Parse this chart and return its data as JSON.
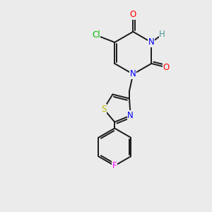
{
  "background_color": "#ebebeb",
  "bond_color": "#1a1a1a",
  "atoms": {
    "Cl": {
      "color": "#00bb00",
      "fontsize": 8.5
    },
    "O": {
      "color": "#ff0000",
      "fontsize": 8.5
    },
    "N": {
      "color": "#0000ff",
      "fontsize": 8.5
    },
    "H": {
      "color": "#4a9999",
      "fontsize": 8.5
    },
    "S": {
      "color": "#bbbb00",
      "fontsize": 8.5
    },
    "F": {
      "color": "#ff00ff",
      "fontsize": 8.5
    }
  },
  "figsize": [
    3.0,
    3.0
  ],
  "dpi": 100
}
